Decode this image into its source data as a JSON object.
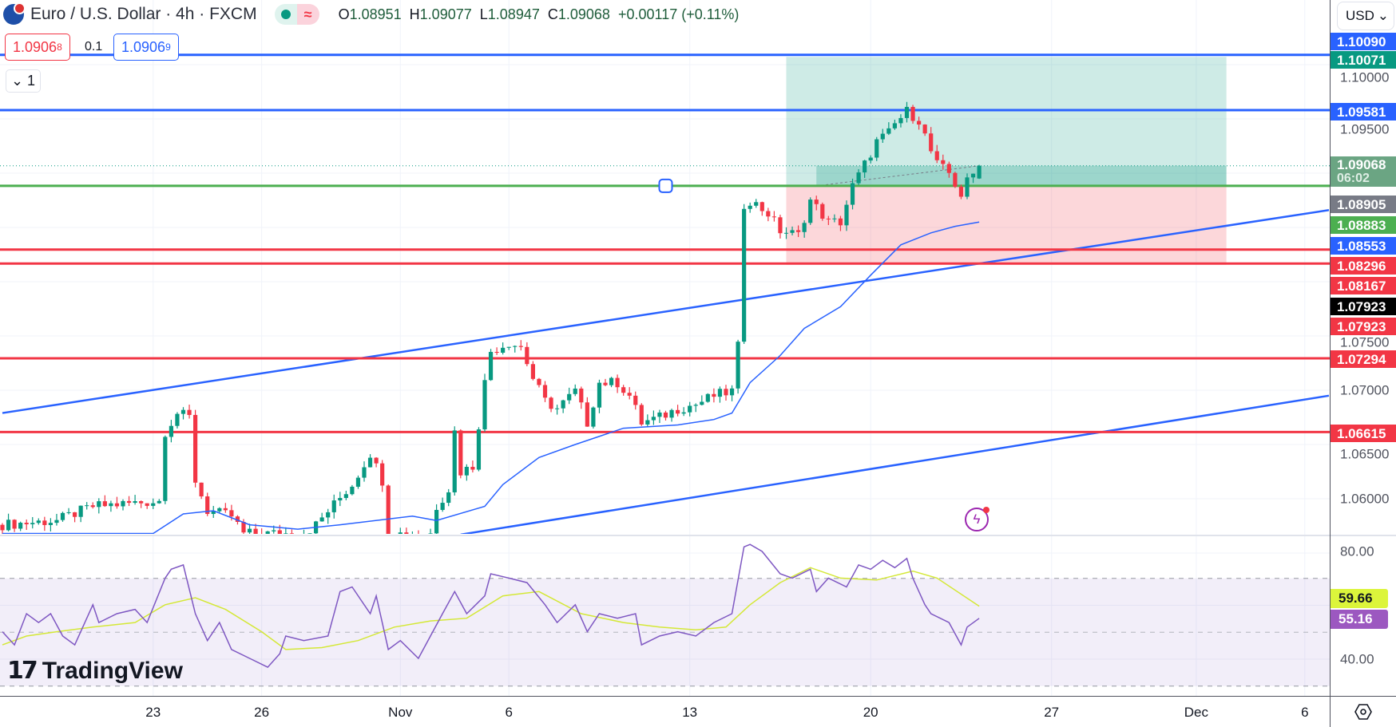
{
  "header": {
    "symbol_title": "Euro / U.S. Dollar · 4h · FXCM",
    "ohlc": {
      "o_label": "O",
      "o": "1.08951",
      "h_label": "H",
      "h": "1.09077",
      "l_label": "L",
      "l": "1.08947",
      "c_label": "C",
      "c": "1.09068",
      "change": "+0.00117 (+0.11%)"
    },
    "sell_price": "1.0906",
    "sell_price_last_digit": "8",
    "spread": "0.1",
    "buy_price": "1.0906",
    "buy_price_last_digit": "9",
    "indicator_toggle": "1",
    "icons": [
      "euro-usd-flag-icon",
      "market-open-dot-icon",
      "delayed-data-icon",
      "chevron-down-icon"
    ]
  },
  "currency": "USD",
  "watermark": "TradingView",
  "price_ticks": [
    {
      "value": 1.1,
      "label": "1.10000"
    },
    {
      "value": 1.095,
      "label": "1.09500"
    },
    {
      "value": 1.075,
      "label": "1.07500"
    },
    {
      "value": 1.07,
      "label": "1.07000"
    },
    {
      "value": 1.065,
      "label": "1.06500"
    },
    {
      "value": 1.06,
      "label": "1.06000"
    }
  ],
  "price_tags": [
    {
      "label": "1.10090",
      "bg": "#2962ff"
    },
    {
      "label": "1.10071",
      "bg": "#089981"
    },
    {
      "label": "1.09581",
      "bg": "#2962ff"
    },
    {
      "label": "1.09068",
      "sub": "06:02",
      "bg": "#6ba583"
    },
    {
      "label": "1.08905",
      "bg": "#787b86"
    },
    {
      "label": "1.08883",
      "bg": "#4caf50"
    },
    {
      "label": "1.08553",
      "bg": "#2962ff"
    },
    {
      "label": "1.08296",
      "bg": "#f23645"
    },
    {
      "label": "1.08167",
      "bg": "#f23645"
    },
    {
      "label": "1.07923",
      "bg": "#000000"
    },
    {
      "label": "1.07923",
      "bg": "#f23645"
    },
    {
      "label": "1.07294",
      "bg": "#f23645"
    },
    {
      "label": "1.06615",
      "bg": "#f23645"
    }
  ],
  "rsi_ticks": [
    {
      "value": 80,
      "label": "80.00"
    },
    {
      "value": 40,
      "label": "40.00"
    }
  ],
  "rsi_tags": [
    {
      "label": "59.66",
      "bg": "#dcf53b",
      "fg": "#131722"
    },
    {
      "label": "55.16",
      "bg": "#9c58c0",
      "fg": "#ffffff"
    }
  ],
  "time_labels": [
    {
      "label": "23",
      "idx": 25
    },
    {
      "label": "26",
      "idx": 43
    },
    {
      "label": "Nov",
      "idx": 66
    },
    {
      "label": "6",
      "idx": 84
    },
    {
      "label": "13",
      "idx": 114
    },
    {
      "label": "20",
      "idx": 144
    },
    {
      "label": "27",
      "idx": 174
    },
    {
      "label": "Dec",
      "idx": 198
    },
    {
      "label": "6",
      "idx": 216
    }
  ],
  "colors": {
    "up": "#089981",
    "down": "#f23645",
    "blue": "#2962ff",
    "green": "#4caf50",
    "red": "#f23645",
    "rsi": "#7e57c2",
    "rsi_ma": "#d4e836"
  },
  "chart_data": {
    "type": "candlestick",
    "symbol": "EURUSD 4h",
    "close_path": [
      [
        0,
        1.0576
      ],
      [
        9,
        1.058
      ],
      [
        15,
        1.0593
      ],
      [
        26,
        1.0598
      ],
      [
        27,
        1.0662
      ],
      [
        29,
        1.0679
      ],
      [
        31,
        1.0675
      ],
      [
        32,
        1.0617
      ],
      [
        34,
        1.0589
      ],
      [
        38,
        1.0584
      ],
      [
        40,
        1.0568
      ],
      [
        50,
        1.0568
      ],
      [
        52,
        1.0576
      ],
      [
        56,
        1.0601
      ],
      [
        58,
        1.0613
      ],
      [
        61,
        1.0642
      ],
      [
        63,
        1.0617
      ],
      [
        64,
        1.0568
      ],
      [
        71,
        1.0568
      ],
      [
        72,
        1.0593
      ],
      [
        74,
        1.0609
      ],
      [
        75,
        1.0662
      ],
      [
        76,
        1.0625
      ],
      [
        78,
        1.063
      ],
      [
        80,
        1.0707
      ],
      [
        81,
        1.0736
      ],
      [
        84,
        1.0744
      ],
      [
        86,
        1.074
      ],
      [
        88,
        1.0711
      ],
      [
        90,
        1.069
      ],
      [
        92,
        1.0683
      ],
      [
        95,
        1.0699
      ],
      [
        97,
        1.067
      ],
      [
        99,
        1.0707
      ],
      [
        102,
        1.0707
      ],
      [
        104,
        1.0695
      ],
      [
        106,
        1.067
      ],
      [
        109,
        1.0675
      ],
      [
        112,
        1.0683
      ],
      [
        115,
        1.0687
      ],
      [
        118,
        1.0695
      ],
      [
        121,
        1.0699
      ],
      [
        122,
        1.074
      ],
      [
        123,
        1.0871
      ],
      [
        124,
        1.0875
      ],
      [
        127,
        1.0863
      ],
      [
        129,
        1.0847
      ],
      [
        132,
        1.0843
      ],
      [
        134,
        1.0875
      ],
      [
        137,
        1.0855
      ],
      [
        139,
        1.0855
      ],
      [
        141,
        1.0888
      ],
      [
        143,
        1.0908
      ],
      [
        145,
        1.0929
      ],
      [
        147,
        1.0937
      ],
      [
        148,
        1.0945
      ],
      [
        150,
        1.0957
      ],
      [
        152,
        1.0949
      ],
      [
        154,
        1.092
      ],
      [
        155,
        1.0908
      ],
      [
        157,
        1.09
      ],
      [
        159,
        1.088
      ],
      [
        160,
        1.0892
      ],
      [
        162,
        1.0906
      ]
    ],
    "last_candle": {
      "o": 1.08951,
      "h": 1.09077,
      "l": 1.08947,
      "c": 1.09068
    },
    "moving_average": [
      [
        0,
        1.0568
      ],
      [
        25,
        1.0568
      ],
      [
        30,
        1.0586
      ],
      [
        35,
        1.0589
      ],
      [
        41,
        1.0576
      ],
      [
        49,
        1.0572
      ],
      [
        56,
        1.0576
      ],
      [
        68,
        1.0584
      ],
      [
        72,
        1.058
      ],
      [
        80,
        1.0593
      ],
      [
        83,
        1.0613
      ],
      [
        89,
        1.0638
      ],
      [
        95,
        1.065
      ],
      [
        103,
        1.0665
      ],
      [
        112,
        1.0668
      ],
      [
        118,
        1.0673
      ],
      [
        121,
        1.0679
      ],
      [
        124,
        1.0707
      ],
      [
        129,
        1.0732
      ],
      [
        133,
        1.0757
      ],
      [
        139,
        1.0777
      ],
      [
        144,
        1.0806
      ],
      [
        149,
        1.0834
      ],
      [
        154,
        1.0845
      ],
      [
        158,
        1.0851
      ],
      [
        162,
        1.0855
      ]
    ],
    "horizontal_levels": [
      {
        "price": 1.1009,
        "color": "blue"
      },
      {
        "price": 1.09581,
        "color": "blue"
      },
      {
        "price": 1.08883,
        "color": "green"
      },
      {
        "price": 1.08296,
        "color": "red"
      },
      {
        "price": 1.08167,
        "color": "red"
      },
      {
        "price": 1.07294,
        "color": "red"
      },
      {
        "price": 1.06615,
        "color": "red"
      }
    ],
    "channel_lines": [
      [
        [
          0,
          1.0679
        ],
        [
          220,
          1.0866
        ]
      ],
      [
        [
          76,
          1.0567
        ],
        [
          220,
          1.0695
        ]
      ]
    ],
    "long_position": {
      "start_idx": 130,
      "end_idx": 203,
      "target": 1.10071,
      "entry": 1.08883,
      "stop": 1.08156,
      "current": 1.09068,
      "current_start_idx": 135
    },
    "current_price": 1.09068,
    "rsi": [
      [
        0,
        50.2
      ],
      [
        2,
        45.3
      ],
      [
        4,
        56.9
      ],
      [
        6,
        53.6
      ],
      [
        8,
        56.9
      ],
      [
        10,
        48.6
      ],
      [
        12,
        45.3
      ],
      [
        15,
        60.2
      ],
      [
        16,
        53.6
      ],
      [
        19,
        56.9
      ],
      [
        22,
        58.5
      ],
      [
        24,
        53.6
      ],
      [
        27,
        70.1
      ],
      [
        28,
        73.4
      ],
      [
        30,
        75.0
      ],
      [
        32,
        56.9
      ],
      [
        34,
        46.9
      ],
      [
        36,
        53.6
      ],
      [
        38,
        43.6
      ],
      [
        41,
        40.3
      ],
      [
        44,
        37.0
      ],
      [
        46,
        42.0
      ],
      [
        47,
        48.6
      ],
      [
        50,
        46.9
      ],
      [
        54,
        48.6
      ],
      [
        56,
        65.1
      ],
      [
        58,
        66.8
      ],
      [
        61,
        56.9
      ],
      [
        62,
        63.5
      ],
      [
        64,
        43.6
      ],
      [
        66,
        46.9
      ],
      [
        69,
        40.3
      ],
      [
        71,
        48.6
      ],
      [
        73,
        56.9
      ],
      [
        75,
        65.1
      ],
      [
        77,
        56.9
      ],
      [
        80,
        63.5
      ],
      [
        81,
        71.7
      ],
      [
        84,
        70.1
      ],
      [
        87,
        68.4
      ],
      [
        90,
        60.2
      ],
      [
        92,
        53.6
      ],
      [
        95,
        60.2
      ],
      [
        97,
        50.2
      ],
      [
        99,
        56.9
      ],
      [
        102,
        55.2
      ],
      [
        105,
        56.9
      ],
      [
        106,
        45.3
      ],
      [
        109,
        48.6
      ],
      [
        112,
        50.2
      ],
      [
        115,
        48.6
      ],
      [
        118,
        53.6
      ],
      [
        121,
        56.9
      ],
      [
        123,
        81.7
      ],
      [
        124,
        82.6
      ],
      [
        126,
        80.0
      ],
      [
        129,
        71.7
      ],
      [
        131,
        70.1
      ],
      [
        134,
        73.4
      ],
      [
        135,
        65.1
      ],
      [
        137,
        70.1
      ],
      [
        140,
        66.8
      ],
      [
        142,
        75.0
      ],
      [
        144,
        73.4
      ],
      [
        146,
        76.7
      ],
      [
        148,
        74.0
      ],
      [
        150,
        77.4
      ],
      [
        151,
        70.1
      ],
      [
        153,
        60.2
      ],
      [
        154,
        56.9
      ],
      [
        157,
        53.6
      ],
      [
        159,
        45.3
      ],
      [
        160,
        51.9
      ],
      [
        162,
        55.16
      ]
    ],
    "rsi_ma": [
      [
        0,
        45.3
      ],
      [
        4,
        48.6
      ],
      [
        9,
        50.2
      ],
      [
        15,
        51.9
      ],
      [
        22,
        53.6
      ],
      [
        27,
        60.2
      ],
      [
        32,
        62.8
      ],
      [
        37,
        58.5
      ],
      [
        43,
        50.2
      ],
      [
        47,
        43.6
      ],
      [
        53,
        44.3
      ],
      [
        59,
        46.9
      ],
      [
        65,
        51.9
      ],
      [
        71,
        54.2
      ],
      [
        77,
        55.2
      ],
      [
        83,
        63.5
      ],
      [
        89,
        65.1
      ],
      [
        96,
        56.9
      ],
      [
        103,
        53.6
      ],
      [
        109,
        51.9
      ],
      [
        115,
        50.9
      ],
      [
        120,
        51.9
      ],
      [
        124,
        60.2
      ],
      [
        129,
        68.4
      ],
      [
        134,
        74.0
      ],
      [
        139,
        70.1
      ],
      [
        145,
        69.4
      ],
      [
        151,
        72.7
      ],
      [
        155,
        70.1
      ],
      [
        162,
        59.66
      ]
    ],
    "rsi_bands": [
      70,
      30
    ]
  }
}
